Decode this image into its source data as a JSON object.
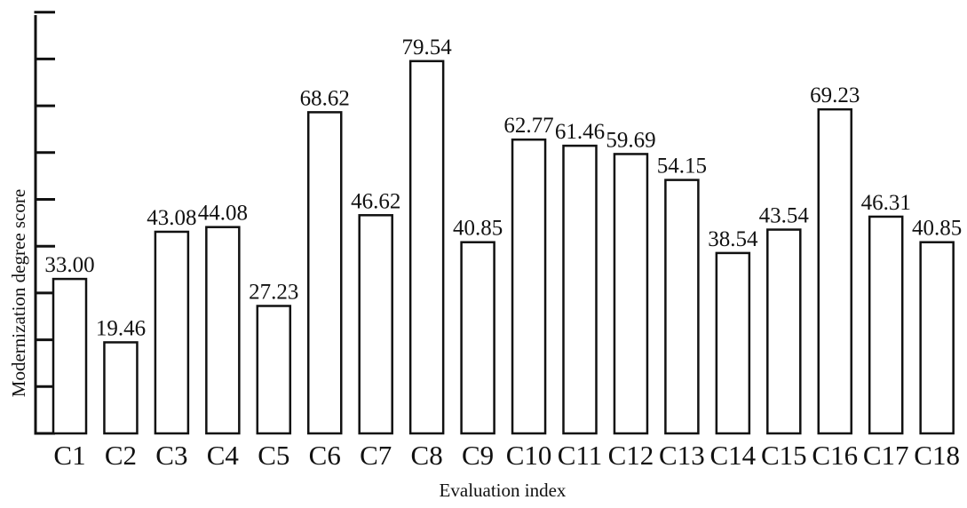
{
  "chart_data": {
    "type": "bar",
    "title": "",
    "xlabel": "Evaluation index",
    "ylabel": "Modernization degree score",
    "categories": [
      "C1",
      "C2",
      "C3",
      "C4",
      "C5",
      "C6",
      "C7",
      "C8",
      "C9",
      "C10",
      "C11",
      "C12",
      "C13",
      "C14",
      "C15",
      "C16",
      "C17",
      "C18"
    ],
    "values": [
      33.0,
      19.46,
      43.08,
      44.08,
      27.23,
      68.62,
      46.62,
      79.54,
      40.85,
      62.77,
      61.46,
      59.69,
      54.15,
      38.54,
      43.54,
      69.23,
      46.31,
      40.85
    ],
    "value_labels": [
      "33.00",
      "19.46",
      "43.08",
      "44.08",
      "27.23",
      "68.62",
      "46.62",
      "79.54",
      "40.85",
      "62.77",
      "61.46",
      "59.69",
      "54.15",
      "38.54",
      "43.54",
      "69.23",
      "46.31",
      "40.85"
    ],
    "ylim": [
      0,
      90
    ],
    "y_tick_step": 10,
    "y_tick_labels_shown": false,
    "grid": false,
    "bar_fill": "#ffffff",
    "bar_stroke": "#111111"
  }
}
